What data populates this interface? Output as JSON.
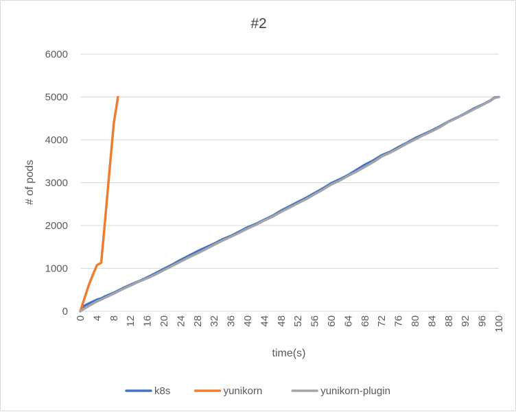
{
  "chart_data": {
    "type": "line",
    "title": "#2",
    "xlabel": "time(s)",
    "ylabel": "# of pods",
    "xlim": [
      0,
      100
    ],
    "ylim": [
      0,
      6000
    ],
    "x_ticks": [
      "0",
      "4",
      "8",
      "12",
      "16",
      "20",
      "24",
      "28",
      "32",
      "36",
      "40",
      "44",
      "48",
      "52",
      "56",
      "60",
      "64",
      "68",
      "72",
      "76",
      "80",
      "84",
      "88",
      "92",
      "96",
      "100"
    ],
    "y_ticks": [
      "0",
      "1000",
      "2000",
      "3000",
      "4000",
      "5000",
      "6000"
    ],
    "grid": true,
    "legend_position": "bottom",
    "series": [
      {
        "name": "k8s",
        "color": "#4472C4",
        "x": [
          0,
          1,
          2,
          4,
          5,
          6,
          8,
          9,
          10,
          12,
          14,
          16,
          18,
          20,
          22,
          24,
          26,
          28,
          30,
          32,
          34,
          36,
          38,
          40,
          42,
          44,
          46,
          48,
          50,
          52,
          54,
          56,
          58,
          60,
          62,
          64,
          66,
          68,
          70,
          72,
          74,
          76,
          78,
          80,
          82,
          84,
          86,
          88,
          90,
          92,
          94,
          96,
          98,
          99,
          100
        ],
        "y": [
          0,
          130,
          180,
          270,
          300,
          350,
          430,
          480,
          530,
          620,
          700,
          790,
          890,
          990,
          1090,
          1200,
          1300,
          1400,
          1490,
          1580,
          1680,
          1760,
          1860,
          1960,
          2040,
          2140,
          2230,
          2350,
          2450,
          2550,
          2650,
          2760,
          2870,
          2990,
          3080,
          3180,
          3300,
          3420,
          3520,
          3640,
          3720,
          3830,
          3930,
          4040,
          4130,
          4220,
          4320,
          4430,
          4520,
          4620,
          4730,
          4820,
          4920,
          4990,
          5000
        ]
      },
      {
        "name": "yunikorn",
        "color": "#ED7D31",
        "x": [
          0,
          2,
          3,
          4,
          5,
          6,
          7,
          8,
          9
        ],
        "y": [
          0,
          600,
          850,
          1080,
          1130,
          2200,
          3300,
          4380,
          5000
        ]
      },
      {
        "name": "yunikorn-plugin",
        "color": "#A5A5A5",
        "x": [
          0,
          1,
          2,
          4,
          5,
          6,
          8,
          9,
          10,
          12,
          14,
          16,
          18,
          20,
          22,
          24,
          26,
          28,
          30,
          32,
          34,
          36,
          38,
          40,
          42,
          44,
          46,
          48,
          50,
          52,
          54,
          56,
          58,
          60,
          62,
          64,
          66,
          68,
          70,
          72,
          74,
          76,
          78,
          80,
          82,
          84,
          86,
          88,
          90,
          92,
          94,
          96,
          98,
          99,
          100
        ],
        "y": [
          0,
          60,
          120,
          230,
          270,
          320,
          410,
          460,
          510,
          600,
          690,
          770,
          860,
          960,
          1060,
          1160,
          1260,
          1350,
          1450,
          1550,
          1650,
          1740,
          1830,
          1930,
          2020,
          2120,
          2210,
          2320,
          2420,
          2520,
          2620,
          2730,
          2840,
          2960,
          3050,
          3160,
          3260,
          3370,
          3480,
          3610,
          3700,
          3800,
          3910,
          4010,
          4110,
          4200,
          4300,
          4420,
          4510,
          4610,
          4710,
          4810,
          4910,
          4980,
          5000
        ]
      }
    ]
  }
}
